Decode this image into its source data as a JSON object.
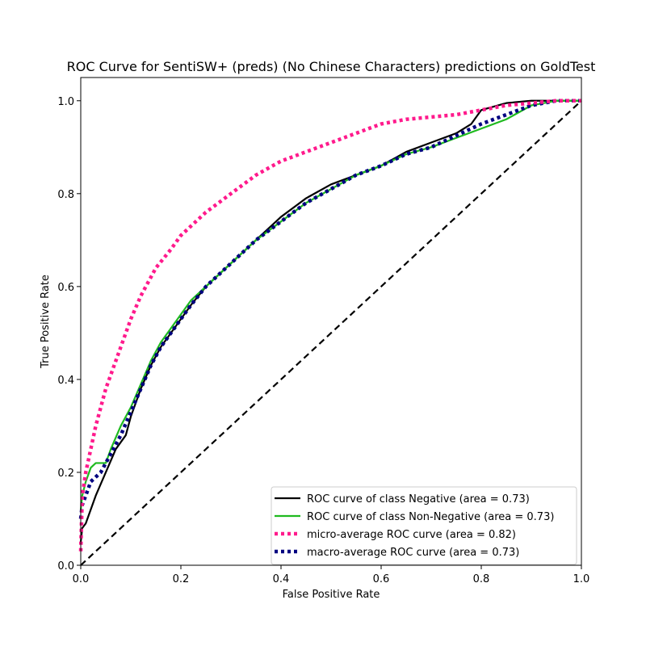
{
  "chart_data": {
    "type": "line",
    "title": "ROC Curve for SentiSW+ (preds) (No Chinese Characters) predictions on GoldTest",
    "xlabel": "False Positive Rate",
    "ylabel": "True Positive Rate",
    "xlim": [
      0.0,
      1.0
    ],
    "ylim": [
      0.0,
      1.05
    ],
    "xticks": [
      "0.0",
      "0.2",
      "0.4",
      "0.6",
      "0.8",
      "1.0"
    ],
    "yticks": [
      "0.0",
      "0.2",
      "0.4",
      "0.6",
      "0.8",
      "1.0"
    ],
    "grid": false,
    "legend_position": "lower-right",
    "series": [
      {
        "name": "ROC curve of class Negative (area = 0.73)",
        "color": "#000000",
        "style": "solid",
        "x": [
          0,
          0.003,
          0.01,
          0.02,
          0.03,
          0.05,
          0.07,
          0.09,
          0.1,
          0.12,
          0.14,
          0.16,
          0.18,
          0.2,
          0.22,
          0.25,
          0.3,
          0.35,
          0.38,
          0.4,
          0.45,
          0.5,
          0.55,
          0.6,
          0.65,
          0.7,
          0.75,
          0.78,
          0.8,
          0.85,
          0.9,
          0.95,
          1.0
        ],
        "y": [
          0.05,
          0.08,
          0.09,
          0.12,
          0.15,
          0.2,
          0.25,
          0.28,
          0.32,
          0.38,
          0.43,
          0.47,
          0.5,
          0.53,
          0.56,
          0.6,
          0.65,
          0.7,
          0.73,
          0.75,
          0.79,
          0.82,
          0.84,
          0.86,
          0.89,
          0.91,
          0.93,
          0.95,
          0.98,
          0.995,
          1.0,
          1.0,
          1.0
        ]
      },
      {
        "name": "ROC curve of class Non-Negative (area = 0.73)",
        "color": "#1fba1f",
        "style": "solid",
        "x": [
          0,
          0.003,
          0.01,
          0.02,
          0.03,
          0.05,
          0.06,
          0.08,
          0.1,
          0.12,
          0.14,
          0.16,
          0.18,
          0.2,
          0.22,
          0.25,
          0.3,
          0.35,
          0.4,
          0.45,
          0.5,
          0.55,
          0.6,
          0.65,
          0.7,
          0.75,
          0.8,
          0.85,
          0.9,
          0.95,
          1.0
        ],
        "y": [
          0.12,
          0.15,
          0.18,
          0.21,
          0.22,
          0.22,
          0.25,
          0.3,
          0.34,
          0.39,
          0.44,
          0.48,
          0.51,
          0.54,
          0.57,
          0.6,
          0.65,
          0.7,
          0.74,
          0.78,
          0.81,
          0.84,
          0.86,
          0.885,
          0.9,
          0.92,
          0.94,
          0.96,
          0.99,
          1.0,
          1.0
        ]
      },
      {
        "name": "micro-average ROC curve (area = 0.82)",
        "color": "#ff1a8c",
        "style": "dotted",
        "x": [
          0,
          0.003,
          0.01,
          0.02,
          0.03,
          0.04,
          0.05,
          0.06,
          0.08,
          0.1,
          0.12,
          0.15,
          0.18,
          0.2,
          0.25,
          0.3,
          0.35,
          0.4,
          0.45,
          0.5,
          0.55,
          0.6,
          0.65,
          0.7,
          0.75,
          0.8,
          0.85,
          0.9,
          0.95,
          1.0
        ],
        "y": [
          0.03,
          0.15,
          0.2,
          0.25,
          0.3,
          0.34,
          0.38,
          0.41,
          0.47,
          0.53,
          0.58,
          0.64,
          0.68,
          0.71,
          0.76,
          0.8,
          0.84,
          0.87,
          0.89,
          0.91,
          0.93,
          0.95,
          0.96,
          0.965,
          0.97,
          0.98,
          0.99,
          0.995,
          1.0,
          1.0
        ]
      },
      {
        "name": "macro-average ROC curve (area = 0.73)",
        "color": "#000080",
        "style": "dotted",
        "x": [
          0,
          0.003,
          0.01,
          0.02,
          0.04,
          0.06,
          0.08,
          0.1,
          0.12,
          0.14,
          0.16,
          0.18,
          0.2,
          0.22,
          0.25,
          0.3,
          0.35,
          0.4,
          0.45,
          0.5,
          0.55,
          0.6,
          0.65,
          0.7,
          0.75,
          0.8,
          0.85,
          0.9,
          0.95,
          1.0
        ],
        "y": [
          0.1,
          0.13,
          0.15,
          0.18,
          0.2,
          0.24,
          0.28,
          0.33,
          0.38,
          0.43,
          0.47,
          0.5,
          0.53,
          0.56,
          0.6,
          0.65,
          0.7,
          0.74,
          0.78,
          0.81,
          0.84,
          0.86,
          0.885,
          0.9,
          0.925,
          0.95,
          0.97,
          0.99,
          1.0,
          1.0
        ]
      },
      {
        "name": "",
        "color": "#000000",
        "style": "dashed",
        "x": [
          0,
          1
        ],
        "y": [
          0,
          1
        ]
      }
    ]
  }
}
